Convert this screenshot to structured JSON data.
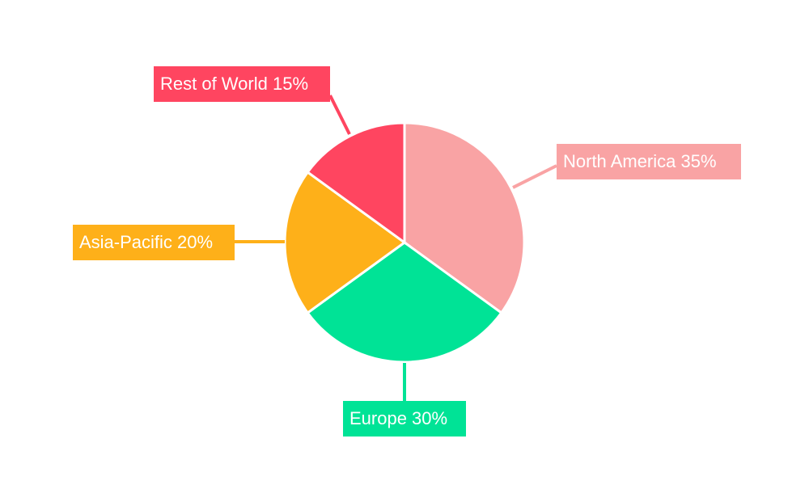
{
  "chart_data": {
    "type": "pie",
    "title": "",
    "start_angle": "top",
    "direction": "clockwise",
    "slices": [
      {
        "label": "North America",
        "value": 35,
        "text": "North America 35%",
        "color": "#f9a3a4"
      },
      {
        "label": "Europe",
        "value": 30,
        "text": "Europe 30%",
        "color": "#00e396"
      },
      {
        "label": "Asia-Pacific",
        "value": 20,
        "text": "Asia-Pacific 20%",
        "color": "#feb019"
      },
      {
        "label": "Rest of World",
        "value": 15,
        "text": "Rest of World 15%",
        "color": "#ff4560"
      }
    ],
    "legend": "none"
  }
}
